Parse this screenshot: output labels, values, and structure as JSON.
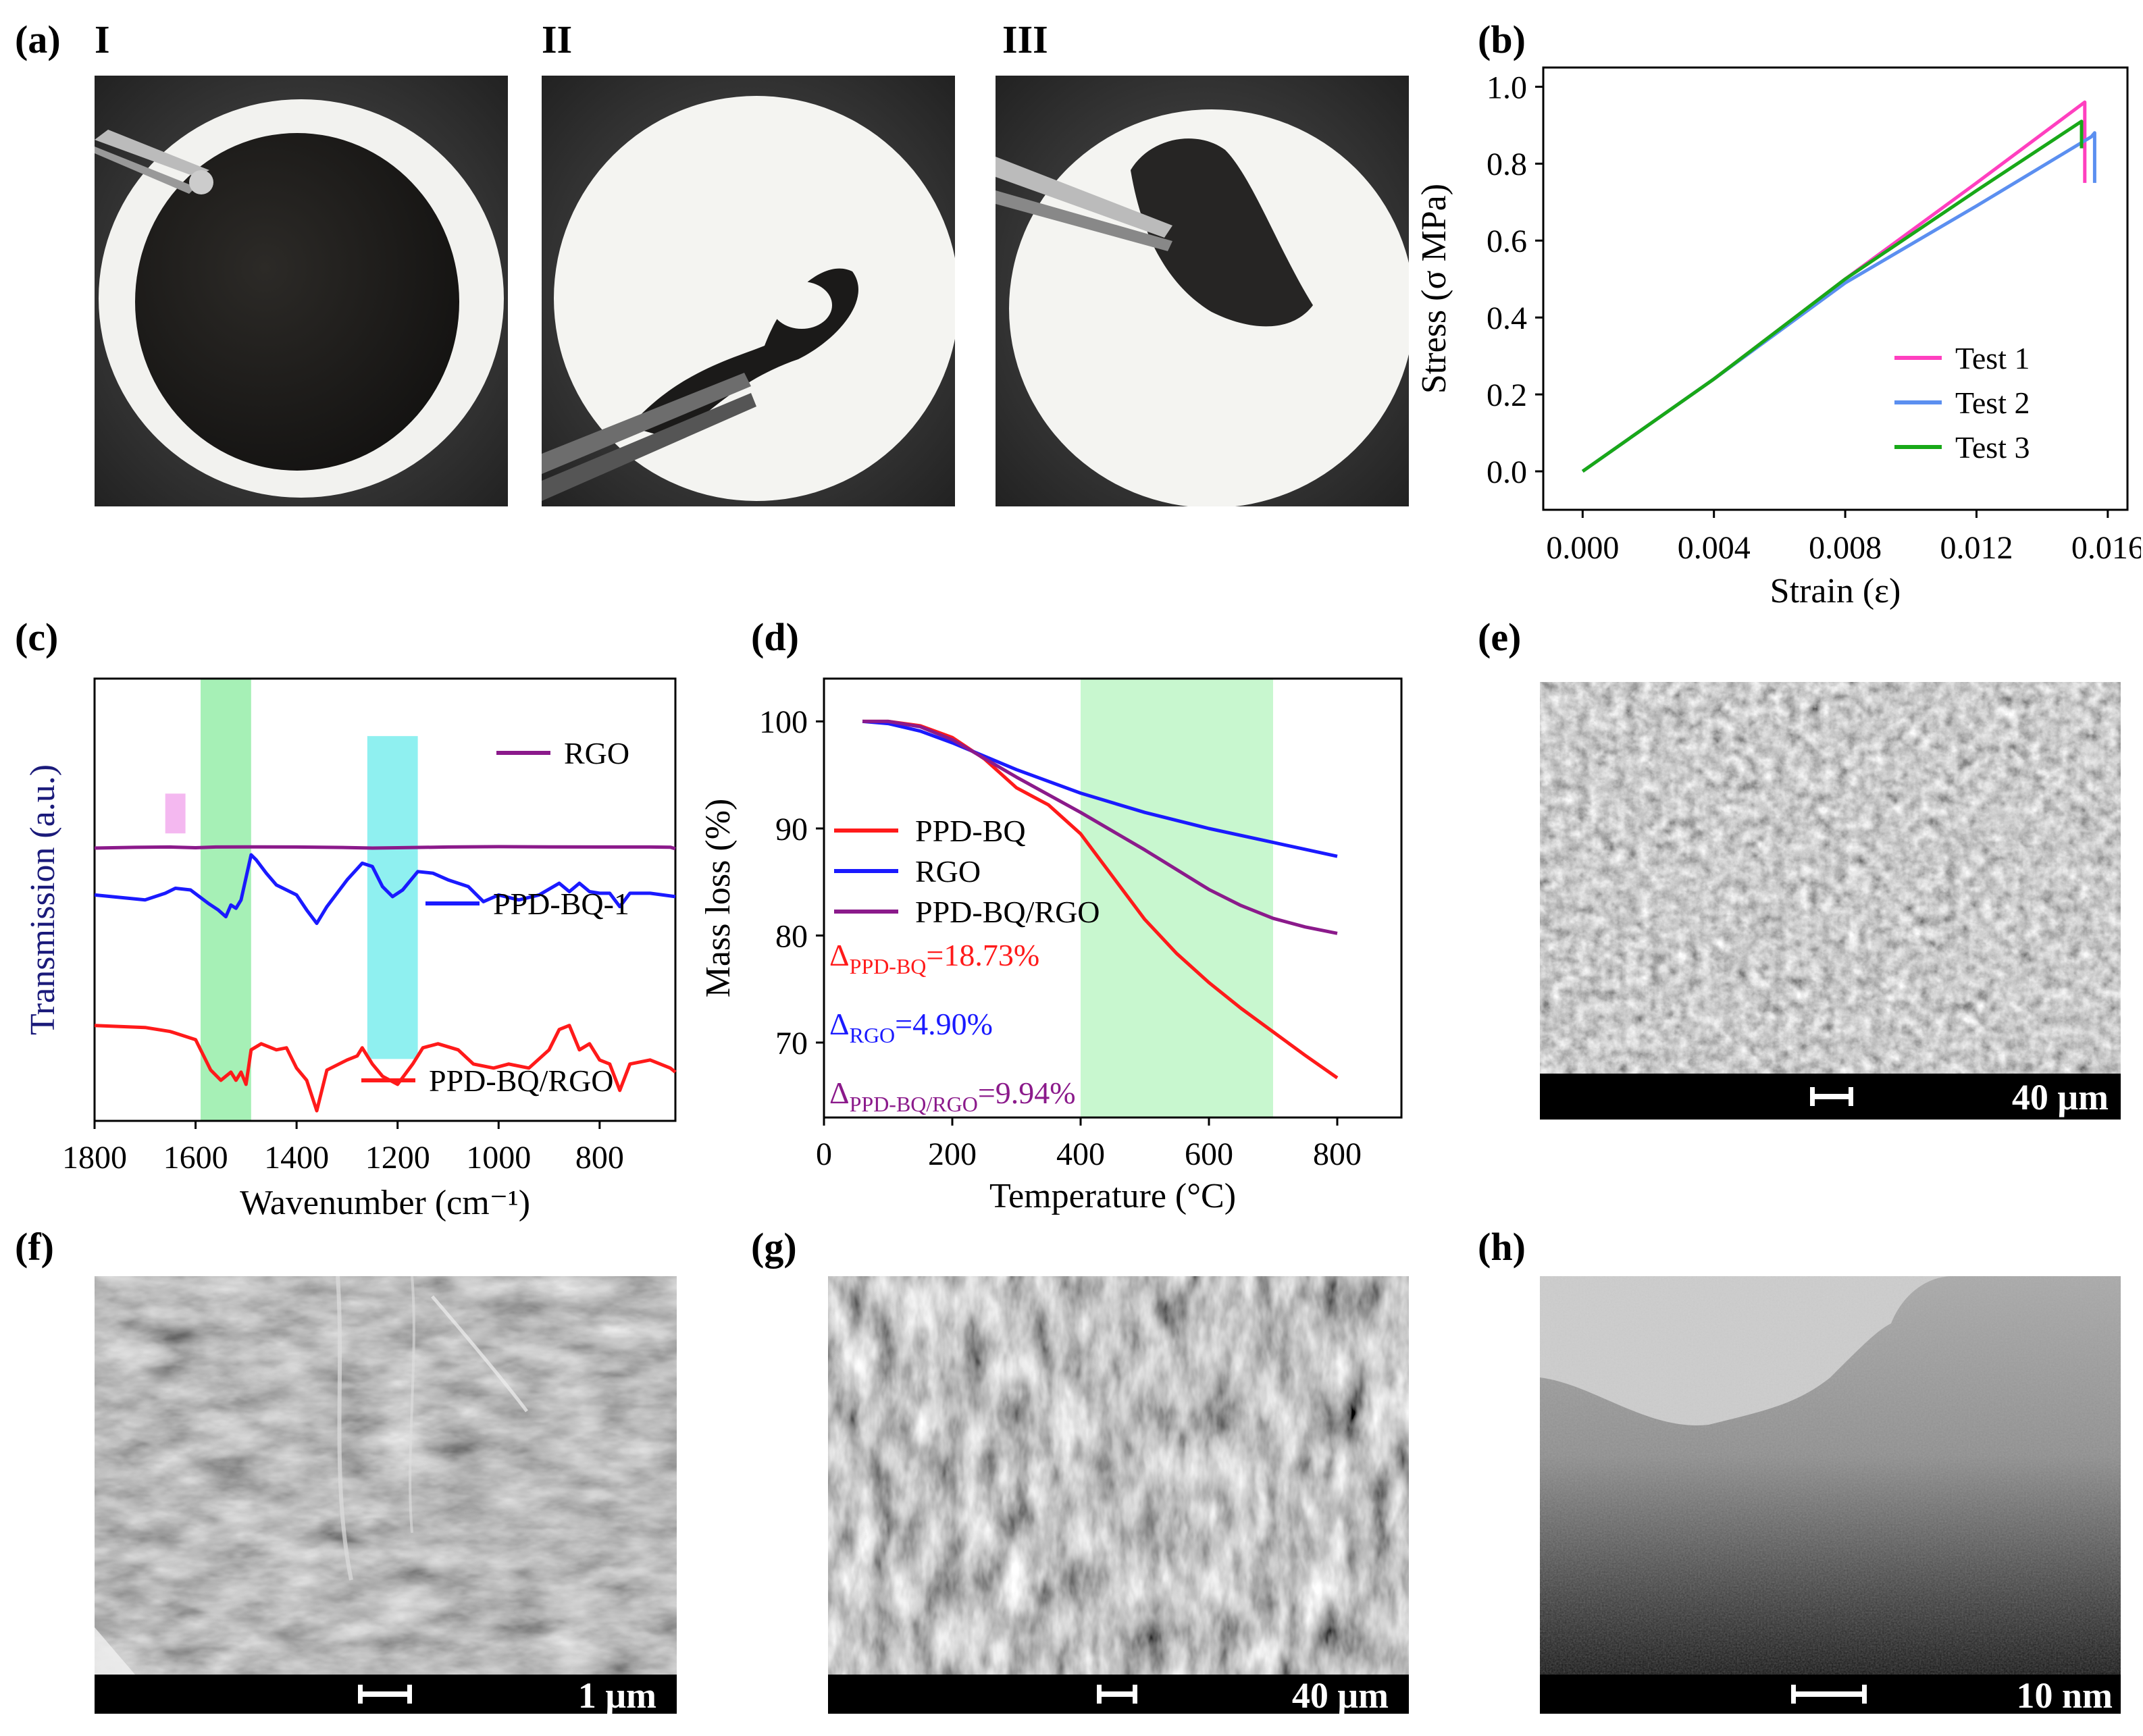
{
  "panels": {
    "a": {
      "label": "(a)",
      "subs": [
        "I",
        "II",
        "III"
      ]
    },
    "b": {
      "label": "(b)"
    },
    "c": {
      "label": "(c)"
    },
    "d": {
      "label": "(d)"
    },
    "e": {
      "label": "(e)",
      "scale": "40 μm"
    },
    "f": {
      "label": "(f)",
      "scale": "1 μm"
    },
    "g": {
      "label": "(g)",
      "scale": "40 μm"
    },
    "h": {
      "label": "(h)",
      "scale": "10 nm"
    }
  },
  "chart_data": [
    {
      "panel": "b",
      "type": "line",
      "xlabel": "Strain (ε)",
      "ylabel": "Stress (σ MPa)",
      "xlim": [
        -0.0012,
        0.0166
      ],
      "ylim": [
        -0.1,
        1.05
      ],
      "xticks": [
        "0.000",
        "0.004",
        "0.008",
        "0.012",
        "0.016"
      ],
      "xtick_values": [
        0,
        0.004,
        0.008,
        0.012,
        0.016
      ],
      "yticks": [
        "0.0",
        "0.2",
        "0.4",
        "0.6",
        "0.8",
        "1.0"
      ],
      "ytick_values": [
        0,
        0.2,
        0.4,
        0.6,
        0.8,
        1.0
      ],
      "legend_position": "bottom-right",
      "series": [
        {
          "name": "Test 1",
          "color": "#ff3fbf",
          "points": [
            [
              0,
              0
            ],
            [
              0.004,
              0.24
            ],
            [
              0.008,
              0.5
            ],
            [
              0.012,
              0.75
            ],
            [
              0.0153,
              0.96
            ],
            [
              0.0153,
              0.75
            ]
          ]
        },
        {
          "name": "Test 2",
          "color": "#5b8ff0",
          "points": [
            [
              0,
              0
            ],
            [
              0.004,
              0.24
            ],
            [
              0.008,
              0.49
            ],
            [
              0.012,
              0.69
            ],
            [
              0.0155,
              0.87
            ],
            [
              0.0156,
              0.88
            ],
            [
              0.0156,
              0.75
            ]
          ]
        },
        {
          "name": "Test 3",
          "color": "#18a818",
          "points": [
            [
              0,
              0
            ],
            [
              0.004,
              0.24
            ],
            [
              0.008,
              0.5
            ],
            [
              0.012,
              0.73
            ],
            [
              0.0152,
              0.91
            ],
            [
              0.0152,
              0.84
            ]
          ]
        }
      ]
    },
    {
      "panel": "c",
      "type": "line",
      "xlabel": "Wavenumber (cm⁻¹)",
      "ylabel": "Transmission (a.u.)",
      "xlim": [
        1800,
        650
      ],
      "ylim": [
        0,
        1
      ],
      "xticks": [
        "1800",
        "1600",
        "1400",
        "1200",
        "1000",
        "800"
      ],
      "xtick_values": [
        1800,
        1600,
        1400,
        1200,
        1000,
        800
      ],
      "highlight_bands": [
        {
          "from": 1660,
          "to": 1620,
          "y_from": 0.65,
          "y_to": 0.74,
          "color": "#f4b8f0"
        },
        {
          "from": 1590,
          "to": 1490,
          "color": "#a6f0b6"
        },
        {
          "from": 1260,
          "to": 1160,
          "y_from": 0.14,
          "y_to": 0.87,
          "color": "#8ff0f0"
        }
      ],
      "series": [
        {
          "name": "RGO",
          "color": "#8b1a8b",
          "points": [
            [
              1800,
              0.96
            ],
            [
              1720,
              0.98
            ],
            [
              1650,
              0.99
            ],
            [
              1600,
              0.97
            ],
            [
              1560,
              0.99
            ],
            [
              1500,
              0.995
            ],
            [
              1400,
              0.99
            ],
            [
              1300,
              0.975
            ],
            [
              1250,
              0.96
            ],
            [
              1200,
              0.97
            ],
            [
              1100,
              0.99
            ],
            [
              1000,
              1.0
            ],
            [
              900,
              0.995
            ],
            [
              800,
              0.99
            ],
            [
              700,
              0.99
            ],
            [
              660,
              0.985
            ],
            [
              650,
              0.94
            ]
          ]
        },
        {
          "name": "PPD-BQ-1",
          "color": "#1a1aff",
          "points": [
            [
              1800,
              0.69
            ],
            [
              1700,
              0.66
            ],
            [
              1660,
              0.7
            ],
            [
              1640,
              0.73
            ],
            [
              1610,
              0.72
            ],
            [
              1575,
              0.64
            ],
            [
              1555,
              0.6
            ],
            [
              1540,
              0.56
            ],
            [
              1530,
              0.63
            ],
            [
              1520,
              0.61
            ],
            [
              1510,
              0.66
            ],
            [
              1490,
              0.93
            ],
            [
              1480,
              0.9
            ],
            [
              1460,
              0.82
            ],
            [
              1440,
              0.75
            ],
            [
              1420,
              0.72
            ],
            [
              1400,
              0.69
            ],
            [
              1380,
              0.6
            ],
            [
              1360,
              0.52
            ],
            [
              1340,
              0.62
            ],
            [
              1300,
              0.78
            ],
            [
              1270,
              0.88
            ],
            [
              1250,
              0.86
            ],
            [
              1230,
              0.74
            ],
            [
              1210,
              0.68
            ],
            [
              1190,
              0.72
            ],
            [
              1160,
              0.83
            ],
            [
              1130,
              0.82
            ],
            [
              1100,
              0.78
            ],
            [
              1060,
              0.74
            ],
            [
              1030,
              0.65
            ],
            [
              1000,
              0.69
            ],
            [
              960,
              0.66
            ],
            [
              920,
              0.69
            ],
            [
              880,
              0.76
            ],
            [
              860,
              0.71
            ],
            [
              840,
              0.76
            ],
            [
              820,
              0.71
            ],
            [
              800,
              0.7
            ],
            [
              780,
              0.7
            ],
            [
              760,
              0.62
            ],
            [
              740,
              0.7
            ],
            [
              700,
              0.7
            ],
            [
              650,
              0.68
            ]
          ]
        },
        {
          "name": "PPD-BQ/RGO",
          "color": "#ff1a1a",
          "points": [
            [
              1800,
              0.47
            ],
            [
              1700,
              0.46
            ],
            [
              1650,
              0.44
            ],
            [
              1600,
              0.4
            ],
            [
              1570,
              0.25
            ],
            [
              1550,
              0.2
            ],
            [
              1530,
              0.24
            ],
            [
              1520,
              0.2
            ],
            [
              1510,
              0.24
            ],
            [
              1500,
              0.18
            ],
            [
              1490,
              0.35
            ],
            [
              1470,
              0.38
            ],
            [
              1440,
              0.35
            ],
            [
              1420,
              0.36
            ],
            [
              1400,
              0.26
            ],
            [
              1380,
              0.2
            ],
            [
              1360,
              0.05
            ],
            [
              1340,
              0.25
            ],
            [
              1300,
              0.3
            ],
            [
              1280,
              0.32
            ],
            [
              1270,
              0.36
            ],
            [
              1250,
              0.28
            ],
            [
              1230,
              0.22
            ],
            [
              1200,
              0.18
            ],
            [
              1170,
              0.28
            ],
            [
              1150,
              0.36
            ],
            [
              1120,
              0.38
            ],
            [
              1080,
              0.35
            ],
            [
              1050,
              0.28
            ],
            [
              1010,
              0.26
            ],
            [
              980,
              0.28
            ],
            [
              940,
              0.26
            ],
            [
              900,
              0.35
            ],
            [
              880,
              0.45
            ],
            [
              860,
              0.47
            ],
            [
              840,
              0.35
            ],
            [
              820,
              0.38
            ],
            [
              800,
              0.3
            ],
            [
              780,
              0.28
            ],
            [
              760,
              0.15
            ],
            [
              740,
              0.28
            ],
            [
              700,
              0.3
            ],
            [
              660,
              0.26
            ],
            [
              650,
              0.24
            ]
          ]
        }
      ]
    },
    {
      "panel": "d",
      "type": "line",
      "xlabel": "Temperature (°C)",
      "ylabel": "Mass loss (%)",
      "xlim": [
        0,
        900
      ],
      "ylim": [
        63,
        104
      ],
      "xticks": [
        "0",
        "200",
        "400",
        "600",
        "800"
      ],
      "xtick_values": [
        0,
        200,
        400,
        600,
        800
      ],
      "yticks": [
        "70",
        "80",
        "90",
        "100"
      ],
      "ytick_values": [
        70,
        80,
        90,
        100
      ],
      "highlight_bands": [
        {
          "from": 400,
          "to": 700,
          "color": "#c8f7cf"
        }
      ],
      "series": [
        {
          "name": "PPD-BQ",
          "color": "#ff1a1a",
          "points": [
            [
              60,
              100
            ],
            [
              100,
              100
            ],
            [
              150,
              99.6
            ],
            [
              200,
              98.5
            ],
            [
              250,
              96.5
            ],
            [
              300,
              93.8
            ],
            [
              350,
              92.2
            ],
            [
              400,
              89.5
            ],
            [
              450,
              85.5
            ],
            [
              500,
              81.5
            ],
            [
              550,
              78.3
            ],
            [
              600,
              75.6
            ],
            [
              650,
              73.2
            ],
            [
              700,
              71
            ],
            [
              750,
              68.8
            ],
            [
              800,
              66.7
            ]
          ]
        },
        {
          "name": "RGO",
          "color": "#1a1aff",
          "points": [
            [
              60,
              100
            ],
            [
              100,
              99.8
            ],
            [
              150,
              99.1
            ],
            [
              200,
              98
            ],
            [
              300,
              95.5
            ],
            [
              400,
              93.3
            ],
            [
              500,
              91.5
            ],
            [
              600,
              90
            ],
            [
              700,
              88.7
            ],
            [
              800,
              87.4
            ]
          ]
        },
        {
          "name": "PPD-BQ/RGO",
          "color": "#8b1a8b",
          "points": [
            [
              60,
              100
            ],
            [
              100,
              100
            ],
            [
              150,
              99.5
            ],
            [
              200,
              98.3
            ],
            [
              300,
              94.8
            ],
            [
              400,
              91.5
            ],
            [
              500,
              88
            ],
            [
              600,
              84.3
            ],
            [
              650,
              82.8
            ],
            [
              700,
              81.6
            ],
            [
              750,
              80.8
            ],
            [
              800,
              80.2
            ]
          ]
        }
      ],
      "annotations": [
        {
          "text": "Δ",
          "sub": "PPD-BQ",
          "value": "=18.73%",
          "color": "#ff1a1a"
        },
        {
          "text": "Δ",
          "sub": "RGO",
          "value": "=4.90%",
          "color": "#1a1aff"
        },
        {
          "text": "Δ",
          "sub": "PPD-BQ/RGO",
          "value": "=9.94%",
          "color": "#8b1a8b"
        }
      ]
    }
  ]
}
